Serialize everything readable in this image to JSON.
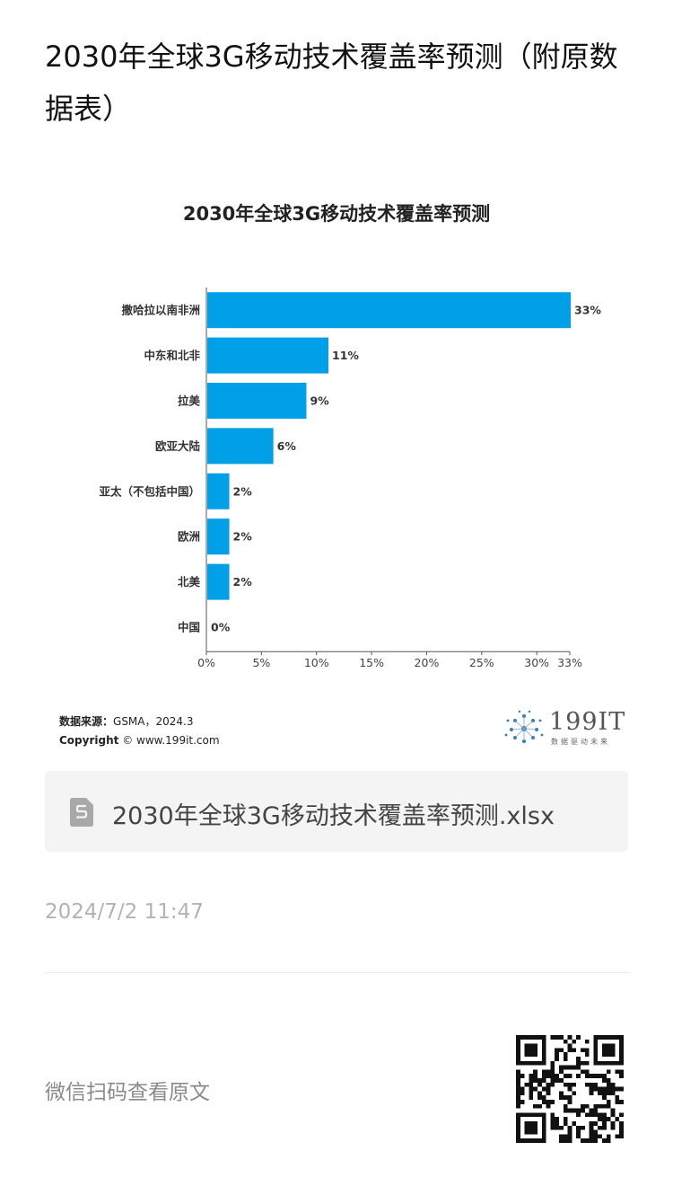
{
  "article": {
    "title": "2030年全球3G移动技术覆盖率预测（附原数据表）"
  },
  "chart_data": {
    "type": "bar",
    "orientation": "horizontal",
    "title": "2030年全球3G移动技术覆盖率预测",
    "categories": [
      "撒哈拉以南非洲",
      "中东和北非",
      "拉美",
      "欧亚大陆",
      "亚太（不包括中国）",
      "欧洲",
      "北美",
      "中国"
    ],
    "values": [
      33,
      11,
      9,
      6,
      2,
      2,
      2,
      0
    ],
    "data_labels": [
      "33%",
      "11%",
      "9%",
      "6%",
      "2%",
      "2%",
      "2%",
      "0%"
    ],
    "x_ticks": [
      0,
      5,
      10,
      15,
      20,
      25,
      30,
      33
    ],
    "x_tick_labels": [
      "0%",
      "5%",
      "10%",
      "15%",
      "20%",
      "25%",
      "30%",
      "33%"
    ],
    "xlim": [
      0,
      33
    ],
    "bar_color": "#00a0e9",
    "grid": false,
    "legend": "none"
  },
  "source": {
    "label": "数据来源：",
    "text": "GSMA，2024.3",
    "copyright_label": "Copyright",
    "copyright_text": "© www.199it.com"
  },
  "logo": {
    "text": "199IT",
    "subtitle": "数据驱动未来"
  },
  "attachment": {
    "icon": "spreadsheet-file-icon",
    "name": "2030年全球3G移动技术覆盖率预测.xlsx"
  },
  "meta": {
    "timestamp": "2024/7/2 11:47"
  },
  "footer": {
    "scan_text": "微信扫码查看原文",
    "qr_icon": "qr-code-icon"
  }
}
